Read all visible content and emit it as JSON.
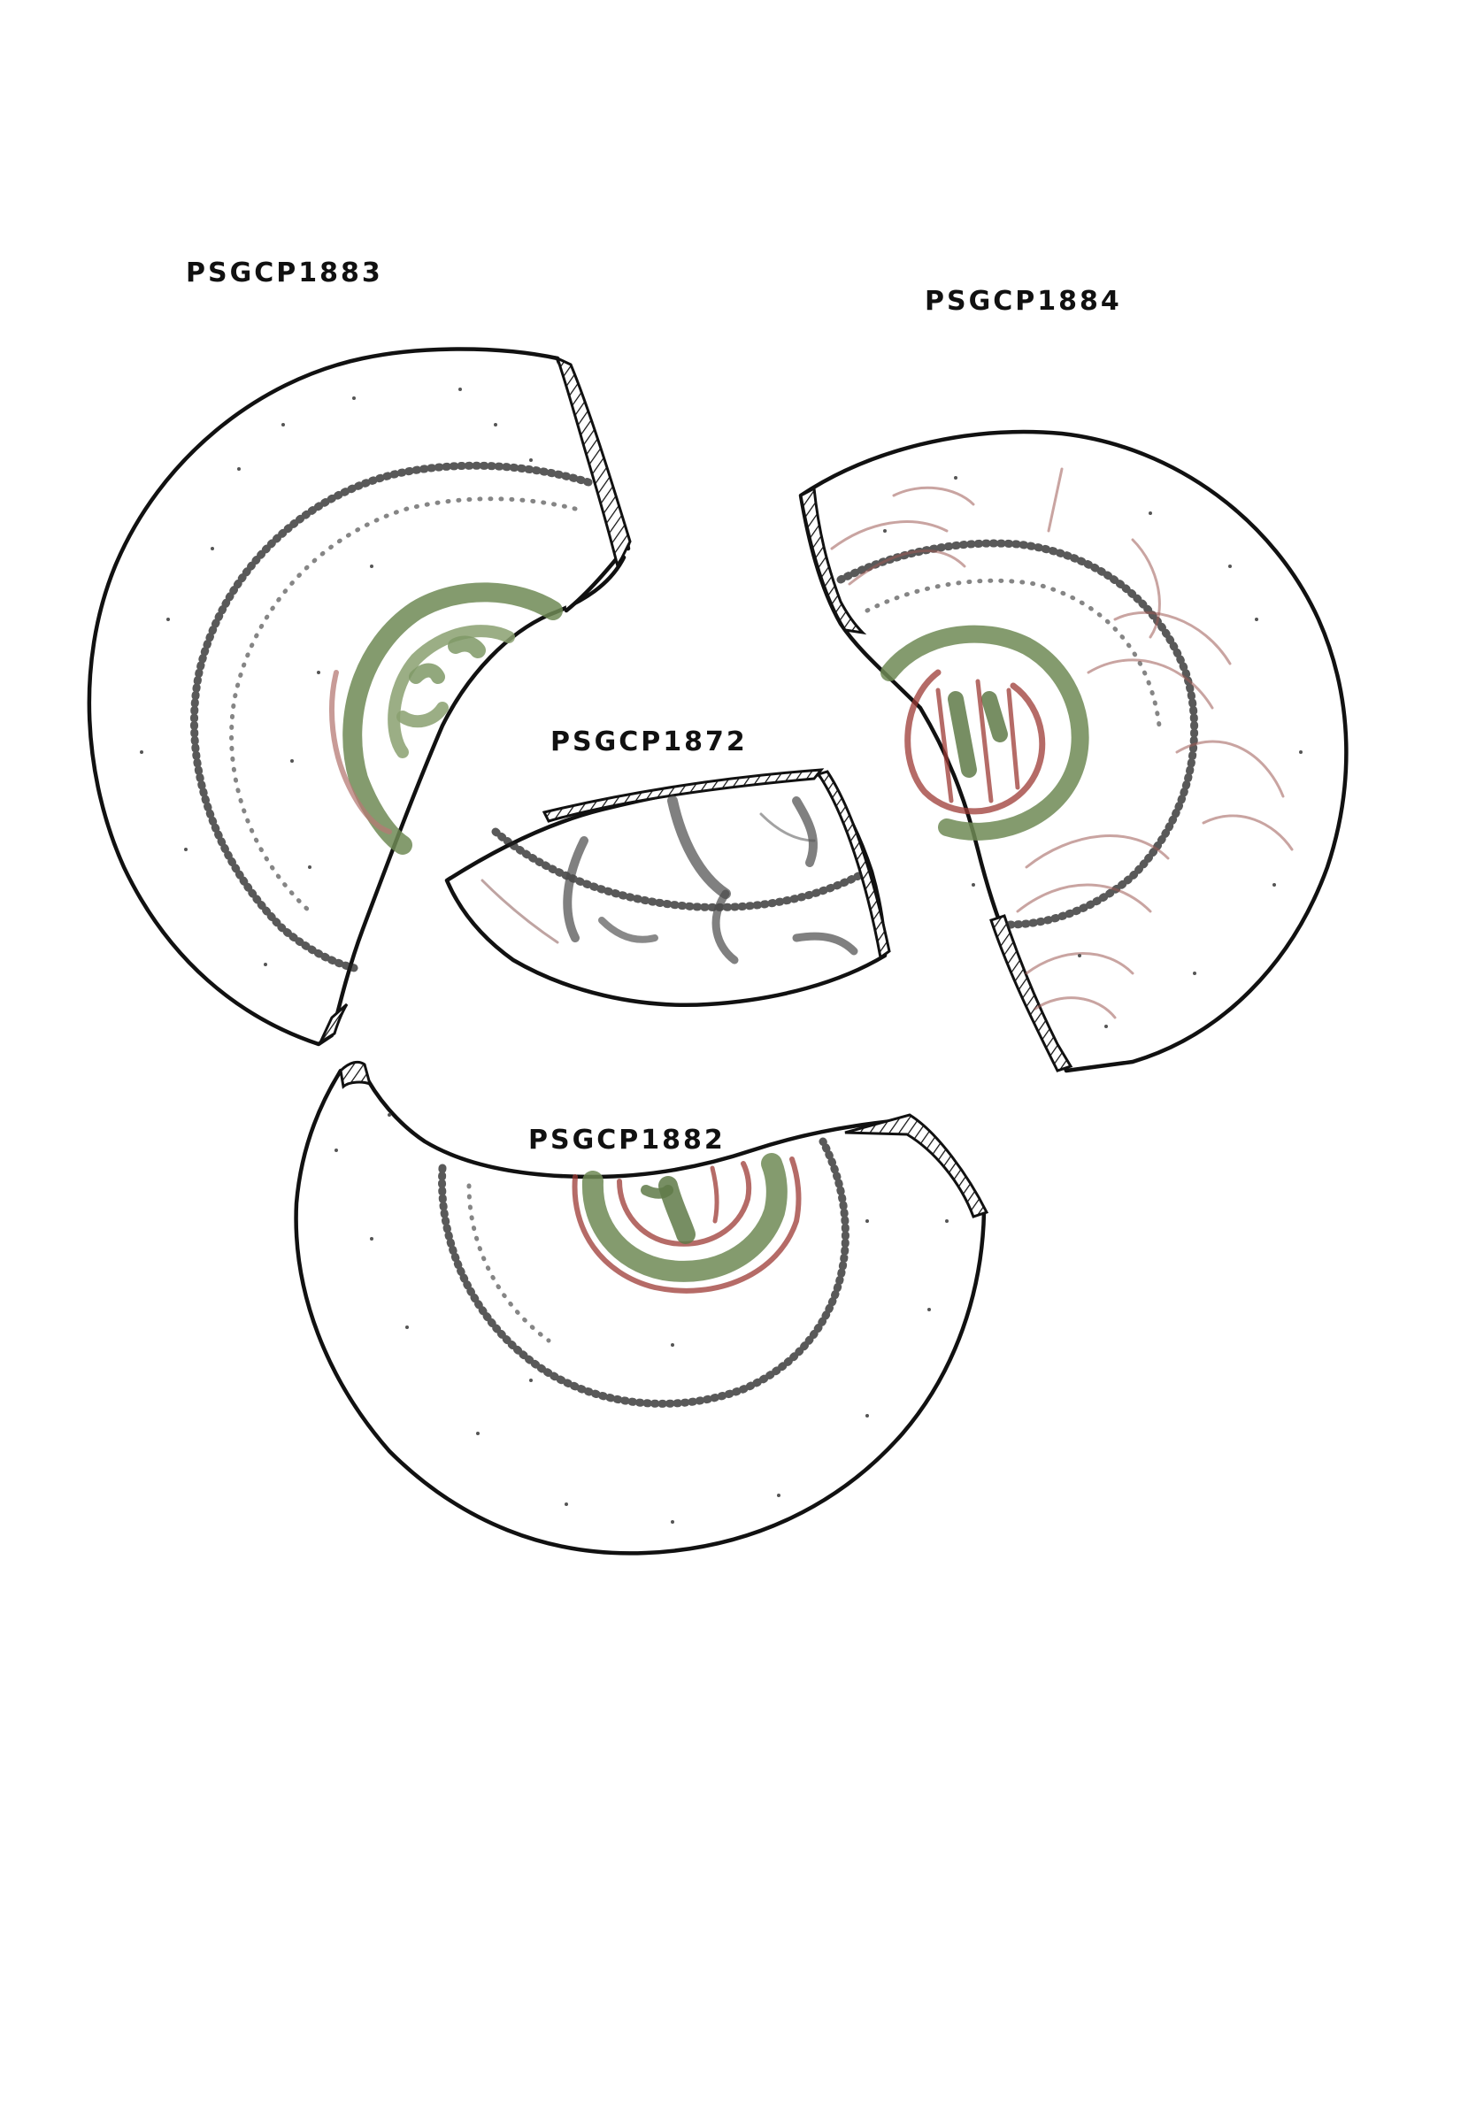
{
  "sheet": {
    "sherds": [
      {
        "id": "PSGCP1883",
        "label": "PSGCP1883"
      },
      {
        "id": "PSGCP1884",
        "label": "PSGCP1884"
      },
      {
        "id": "PSGCP1872",
        "label": "PSGCP1872"
      },
      {
        "id": "PSGCP1882",
        "label": "PSGCP1882"
      }
    ]
  },
  "colors": {
    "green_paint": "#6e8a55",
    "red_paint": "#9c3a34",
    "dark_paint": "#4a4a4a",
    "outline": "#111111"
  }
}
